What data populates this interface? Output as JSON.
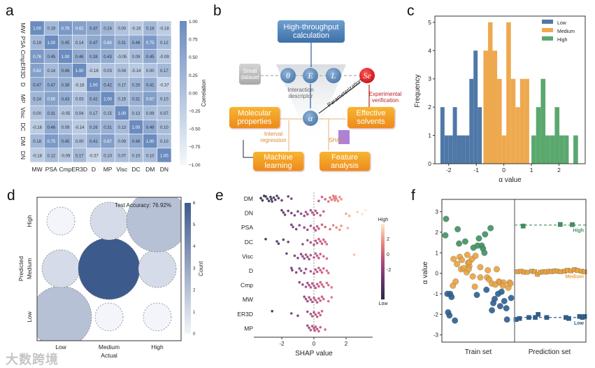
{
  "panel_labels": [
    "a",
    "b",
    "c",
    "d",
    "e",
    "f"
  ],
  "watermark": "大数跨境",
  "diagram": {
    "high_throughput": "High-throughput calculation",
    "small_dataset": "Small dataset",
    "theta": "θ",
    "E": "E",
    "L": "L",
    "Se": "Se",
    "alpha": "α",
    "interaction_descriptor": "Interaction descriptor",
    "molecular_properties": "Molecular properties",
    "interval_regression": "Interval regression",
    "machine_learning": "Machine learning",
    "effective_solvents": "Effective solvents",
    "experimental_verification": "Experimental verification",
    "parameterization": "Parameterization",
    "shap": "SHAP",
    "feature_analysis": "Feature analysis"
  },
  "chart_data": [
    {
      "panel": "a",
      "type": "heatmap",
      "labels": [
        "MW",
        "PSA",
        "Cmp",
        "ER3D",
        "D",
        "MP",
        "Visc",
        "DC",
        "DM",
        "DN"
      ],
      "values": [
        [
          1.0,
          0.19,
          0.76,
          0.62,
          0.47,
          0.24,
          0.0,
          -0.16,
          0.18,
          -0.18
        ],
        [
          0.19,
          1.0,
          0.45,
          0.14,
          0.47,
          0.6,
          0.31,
          0.46,
          0.75,
          0.12
        ],
        [
          0.76,
          0.45,
          1.0,
          0.46,
          0.38,
          0.43,
          -0.05,
          0.09,
          0.45,
          -0.09
        ],
        [
          0.62,
          0.14,
          0.46,
          1.0,
          -0.18,
          0.03,
          0.04,
          -0.14,
          0.0,
          0.17
        ],
        [
          0.47,
          0.47,
          0.38,
          -0.18,
          1.0,
          0.42,
          0.17,
          0.26,
          0.41,
          -0.37
        ],
        [
          0.24,
          0.6,
          0.43,
          0.03,
          0.42,
          1.0,
          0.15,
          0.31,
          0.67,
          0.1
        ],
        [
          0.0,
          0.31,
          -0.05,
          0.04,
          0.17,
          0.15,
          1.0,
          0.13,
          0.09,
          0.07
        ],
        [
          -0.16,
          0.46,
          0.09,
          -0.14,
          0.26,
          0.31,
          0.13,
          1.0,
          0.49,
          0.1
        ],
        [
          0.18,
          0.75,
          0.45,
          0.0,
          0.41,
          0.67,
          0.09,
          0.49,
          1.0,
          0.1
        ],
        [
          -0.18,
          0.12,
          -0.09,
          0.17,
          -0.37,
          0.1,
          0.07,
          0.1,
          0.1,
          1.0
        ]
      ],
      "colorbar_label": "Correlation",
      "colorbar_ticks": [
        "1.00",
        "0.75",
        "0.50",
        "0.25",
        "0.00",
        "−0.25",
        "−0.50",
        "−0.75",
        "−1.00"
      ],
      "vlim": [
        -1,
        1
      ],
      "color_low": "#f4f8fc",
      "color_high": "#6b8cbf"
    },
    {
      "panel": "c",
      "type": "bar",
      "xlabel": "α value",
      "ylabel": "Frequency",
      "xlim": [
        -2.5,
        2.95
      ],
      "ylim": [
        0,
        5.22
      ],
      "xticks": [
        "-2",
        "-1",
        "0",
        "1",
        "2"
      ],
      "yticks": [
        "0",
        "1",
        "2",
        "3",
        "4",
        "5"
      ],
      "legend_position": "top-right",
      "series": [
        {
          "name": "Low",
          "color": "#4f78a8",
          "start": -2.3,
          "bin_width": 0.15,
          "counts": [
            2,
            1,
            1,
            2,
            1,
            1,
            1,
            3,
            4,
            2
          ]
        },
        {
          "name": "Medium",
          "color": "#eea94f",
          "start": -0.74,
          "bin_width": 0.166,
          "counts": [
            4,
            5,
            4,
            3,
            1,
            5,
            3,
            2,
            3,
            3
          ]
        },
        {
          "name": "High",
          "color": "#5aa86e",
          "start": 1.0,
          "bin_width": 0.169,
          "counts": [
            1,
            2,
            3,
            1,
            1,
            2,
            1,
            1,
            0,
            1
          ]
        }
      ]
    },
    {
      "panel": "d",
      "type": "scatter",
      "title": "Test Accuracy: 76.92%",
      "xlabel": "Actual",
      "ylabel": "Predicted",
      "categories": [
        "Low",
        "Medium",
        "High"
      ],
      "counts": [
        {
          "actual": "Low",
          "predicted": "Low",
          "count": 2
        },
        {
          "actual": "Low",
          "predicted": "Medium",
          "count": 1
        },
        {
          "actual": "Low",
          "predicted": "High",
          "count": 0
        },
        {
          "actual": "Medium",
          "predicted": "Low",
          "count": 0
        },
        {
          "actual": "Medium",
          "predicted": "Medium",
          "count": 6
        },
        {
          "actual": "Medium",
          "predicted": "High",
          "count": 1
        },
        {
          "actual": "High",
          "predicted": "Low",
          "count": 0
        },
        {
          "actual": "High",
          "predicted": "Medium",
          "count": 1
        },
        {
          "actual": "High",
          "predicted": "High",
          "count": 2
        }
      ],
      "colorbar_label": "Count",
      "colorbar_ticks": [
        "0",
        "1",
        "2",
        "3",
        "4",
        "5",
        "6"
      ]
    },
    {
      "panel": "e",
      "type": "scatter",
      "xlabel": "SHAP value",
      "xlim": [
        -3.7,
        3.7
      ],
      "xticks": [
        "-2",
        "0",
        "2"
      ],
      "colorbar_labels": {
        "high": "High",
        "low": "Low"
      },
      "colorbar_ticks": [
        "2",
        "0",
        "-2"
      ],
      "features": [
        {
          "name": "DM",
          "shap": [
            -3.1,
            -3.3,
            -3.2,
            -3.0,
            -2.9,
            -2.8,
            -2.7,
            -2.65,
            -2.6,
            -2.5,
            -2.4,
            -2.3,
            -2.2,
            -2.0,
            -1.6,
            -1.4,
            0.3,
            0.5,
            0.7,
            0.9,
            1.0,
            1.1,
            1.2,
            1.25,
            1.3,
            1.35,
            1.4,
            1.5,
            1.6,
            1.7
          ]
        },
        {
          "name": "DN",
          "shap": [
            -2.0,
            -1.9,
            -1.8,
            -1.6,
            -1.4,
            -1.2,
            -1.0,
            -0.8,
            -0.6,
            -0.5,
            -0.4,
            -0.2,
            -0.1,
            0,
            0.1,
            0.2,
            0.4,
            0.6,
            2.0,
            2.2,
            2.7,
            3.0,
            3.2
          ]
        },
        {
          "name": "PSA",
          "shap": [
            -1.4,
            -1.3,
            -1.1,
            -0.9,
            -0.6,
            -0.4,
            -0.2,
            0,
            0.1,
            0.2,
            0.3,
            0.5,
            0.7,
            1.0,
            1.2,
            1.4,
            1.6,
            1.7,
            2.1
          ]
        },
        {
          "name": "DC",
          "shap": [
            -3.0,
            -2.3,
            -2.2,
            -1.9,
            -1.6,
            -0.7,
            -0.4,
            -0.2,
            0,
            0.1,
            0.2,
            0.3,
            0.4,
            0.5,
            0.6,
            0.7,
            0.8
          ]
        },
        {
          "name": "Visc",
          "shap": [
            -1.7,
            -1.2,
            -1.0,
            -0.8,
            -0.7,
            -0.6,
            -0.5,
            -0.4,
            -0.3,
            -0.2,
            0,
            0.1,
            0.2,
            0.3,
            0.4,
            0.6,
            0.8,
            2.5
          ]
        },
        {
          "name": "D",
          "shap": [
            -1.4,
            -1.35,
            -1.1,
            -0.9,
            -0.8,
            -0.6,
            -0.5,
            -0.2,
            0,
            0.1,
            0.2,
            0.3,
            0.4,
            0.5,
            0.6,
            0.8,
            0.9
          ]
        },
        {
          "name": "Cmp",
          "shap": [
            -0.9,
            -0.7,
            -0.5,
            -0.4,
            -0.3,
            -0.2,
            -0.1,
            0,
            0.1,
            0.2,
            0.3,
            0.4,
            0.5,
            0.6,
            0.8,
            0.9,
            1.1
          ]
        },
        {
          "name": "MW",
          "shap": [
            -0.6,
            -0.5,
            -0.4,
            -0.3,
            -0.2,
            -0.1,
            0,
            0.1,
            0.2,
            0.3,
            0.4,
            0.5,
            0.6,
            0.9,
            1.1
          ]
        },
        {
          "name": "ER3D",
          "shap": [
            -2.6,
            -1.4,
            -1.0,
            -0.4,
            -0.2,
            -0.1,
            0,
            0.1,
            0.2,
            0.3,
            0.4,
            0.5
          ]
        },
        {
          "name": "MP",
          "shap": [
            -0.4,
            -0.3,
            -0.2,
            -0.1,
            0,
            0.05,
            0.1,
            0.2,
            0.3,
            0.4,
            0.7
          ]
        }
      ]
    },
    {
      "panel": "f",
      "type": "scatter",
      "ylabel": "α value",
      "ylim": [
        -3.35,
        3.6
      ],
      "yticks": [
        3,
        2,
        1,
        0,
        -1,
        -2,
        -3
      ],
      "sections": [
        "Train set",
        "Prediction set"
      ],
      "colors": {
        "High": "#3f9160",
        "Medium": "#e8a23f",
        "Low": "#2a5f92"
      },
      "train": {
        "High": [
          [
            0.03,
            2.65
          ],
          [
            0.02,
            1.85
          ],
          [
            0.2,
            2.15
          ],
          [
            0.22,
            1.45
          ],
          [
            0.31,
            1.55
          ],
          [
            0.43,
            1.25
          ],
          [
            0.49,
            1.35
          ],
          [
            0.51,
            1.7
          ],
          [
            0.55,
            1.35
          ],
          [
            0.57,
            1.2
          ],
          [
            0.59,
            1.0
          ],
          [
            0.6,
            1.9
          ],
          [
            0.68,
            2.2
          ]
        ],
        "Medium": [
          [
            0.13,
            -0.6
          ],
          [
            0.17,
            -0.4
          ],
          [
            0.14,
            0.7
          ],
          [
            0.19,
            0.45
          ],
          [
            0.23,
            0.8
          ],
          [
            0.26,
            0.65
          ],
          [
            0.25,
            0.2
          ],
          [
            0.29,
            0.25
          ],
          [
            0.33,
            0.05
          ],
          [
            0.34,
            0.9
          ],
          [
            0.35,
            0.5
          ],
          [
            0.37,
            0.35
          ],
          [
            0.36,
            0.2
          ],
          [
            0.37,
            0.55
          ],
          [
            0.41,
            0.7
          ],
          [
            0.42,
            -0.15
          ],
          [
            0.45,
            -0.65
          ],
          [
            0.46,
            0.85
          ],
          [
            0.53,
            0.3
          ],
          [
            0.53,
            -0.2
          ],
          [
            0.64,
            0.15
          ],
          [
            0.63,
            -0.2
          ],
          [
            0.66,
            -0.3
          ],
          [
            0.7,
            -0.5
          ],
          [
            0.75,
            -0.55
          ],
          [
            0.77,
            0.2
          ],
          [
            0.8,
            -0.4
          ],
          [
            0.82,
            -0.45
          ],
          [
            0.87,
            -0.45
          ],
          [
            0.86,
            -0.6
          ],
          [
            0.94,
            -0.7
          ],
          [
            0.96,
            -0.45
          ],
          [
            0.97,
            -0.5
          ]
        ],
        "Low": [
          [
            0.05,
            -1.0
          ],
          [
            0.09,
            -1.0
          ],
          [
            0.11,
            -1.15
          ],
          [
            0.06,
            -1.9
          ],
          [
            0.08,
            -2.05
          ],
          [
            0.16,
            -2.3
          ],
          [
            0.48,
            -1.05
          ],
          [
            0.62,
            -0.8
          ],
          [
            0.7,
            -1.8
          ],
          [
            0.72,
            -1.45
          ],
          [
            0.74,
            -1.25
          ],
          [
            0.79,
            -1.0
          ],
          [
            0.82,
            -1.6
          ],
          [
            0.84,
            -0.9
          ],
          [
            0.88,
            -1.35
          ],
          [
            0.91,
            -1.7
          ],
          [
            0.92,
            -2.25
          ],
          [
            0.98,
            -1.2
          ]
        ]
      },
      "prediction": {
        "High": {
          "level": 2.35,
          "label": "High",
          "points": [
            [
              0.12,
              2.3
            ],
            [
              0.64,
              2.38
            ],
            [
              0.81,
              2.37
            ]
          ]
        },
        "Medium": {
          "level": 0.07,
          "label": "Medium",
          "points": [
            [
              0.04,
              0.08
            ],
            [
              0.09,
              0.1
            ],
            [
              0.13,
              0.06
            ],
            [
              0.17,
              0.05
            ],
            [
              0.24,
              0.1
            ],
            [
              0.28,
              0.08
            ],
            [
              0.32,
              -0.05
            ],
            [
              0.36,
              0.05
            ],
            [
              0.4,
              0.08
            ],
            [
              0.44,
              0.06
            ],
            [
              0.48,
              0.1
            ],
            [
              0.52,
              0.08
            ],
            [
              0.56,
              0.12
            ],
            [
              0.6,
              0.1
            ],
            [
              0.64,
              0.08
            ],
            [
              0.7,
              0.1
            ],
            [
              0.74,
              0.15
            ],
            [
              0.79,
              0.12
            ],
            [
              0.84,
              0.18
            ],
            [
              0.88,
              0.14
            ],
            [
              0.94,
              0.1
            ],
            [
              0.98,
              0.07
            ]
          ]
        },
        "Low": {
          "level": -2.15,
          "label": "Low",
          "points": [
            [
              0.02,
              -2.25
            ],
            [
              0.07,
              -2.2
            ],
            [
              0.2,
              -2.15
            ],
            [
              0.29,
              -2.15
            ],
            [
              0.33,
              -2.0
            ],
            [
              0.45,
              -2.15
            ],
            [
              0.72,
              -2.15
            ],
            [
              0.76,
              -2.2
            ],
            [
              0.91,
              -2.1
            ],
            [
              0.95,
              -2.15
            ],
            [
              0.98,
              -2.1
            ]
          ]
        }
      }
    }
  ]
}
